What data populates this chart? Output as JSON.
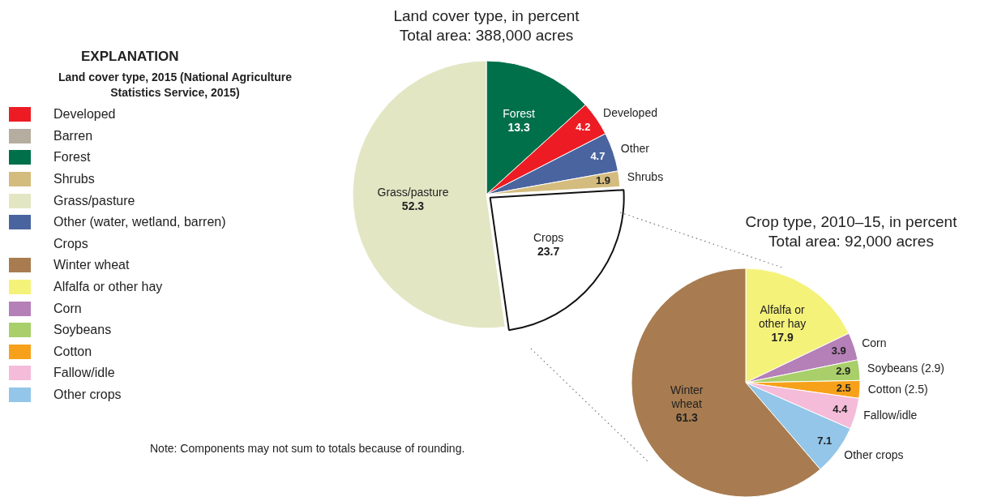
{
  "chart_data": [
    {
      "type": "other",
      "title": "EXPLANATION",
      "legend_title": "Land cover type, 2015 (National Agriculture Statistics Service, 2015)",
      "series": [
        {
          "name": "Developed",
          "color": "#ed1c24"
        },
        {
          "name": "Barren",
          "color": "#b5aea0"
        },
        {
          "name": "Forest",
          "color": "#00704a"
        },
        {
          "name": "Shrubs",
          "color": "#d4bc7e"
        },
        {
          "name": "Grass/pasture",
          "color": "#e3e6c3"
        },
        {
          "name": "Other (water, wetland, barren)",
          "color": "#4a64a0"
        },
        {
          "name": "Crops",
          "color": null
        },
        {
          "name": "Winter wheat",
          "color": "#a87c50"
        },
        {
          "name": "Alfalfa or other hay",
          "color": "#f5f27a"
        },
        {
          "name": "Corn",
          "color": "#b57fb8"
        },
        {
          "name": "Soybeans",
          "color": "#a9cf6a"
        },
        {
          "name": "Cotton",
          "color": "#f7a11b"
        },
        {
          "name": "Fallow/idle",
          "color": "#f4bcd9"
        },
        {
          "name": "Other crops",
          "color": "#93c6e8"
        }
      ],
      "annotations": [
        "Note: Components may not sum to totals because of rounding."
      ]
    },
    {
      "type": "pie",
      "title": "Land cover type, in percent",
      "subtitle": "Total area: 388,000 acres",
      "categories": [
        "Forest",
        "Developed",
        "Other",
        "Shrubs",
        "Crops",
        "Grass/pasture"
      ],
      "values": [
        13.3,
        4.2,
        4.7,
        1.9,
        23.7,
        52.3
      ],
      "colors": [
        "#00704a",
        "#ed1c24",
        "#4a64a0",
        "#d4bc7e",
        "#ffffff",
        "#e3e6c3"
      ],
      "data_labels": true
    },
    {
      "type": "pie",
      "title": "Crop type, 2010–15, in percent",
      "subtitle": "Total area: 92,000 acres",
      "categories": [
        "Alfalfa or other hay",
        "Corn",
        "Soybeans (2.9)",
        "Cotton (2.5)",
        "Fallow/idle",
        "Other crops",
        "Winter wheat"
      ],
      "values": [
        17.9,
        3.9,
        2.9,
        2.5,
        4.4,
        7.1,
        61.3
      ],
      "colors": [
        "#f5f27a",
        "#b57fb8",
        "#a9cf6a",
        "#f7a11b",
        "#f4bcd9",
        "#93c6e8",
        "#a87c50"
      ],
      "data_labels": true
    }
  ]
}
